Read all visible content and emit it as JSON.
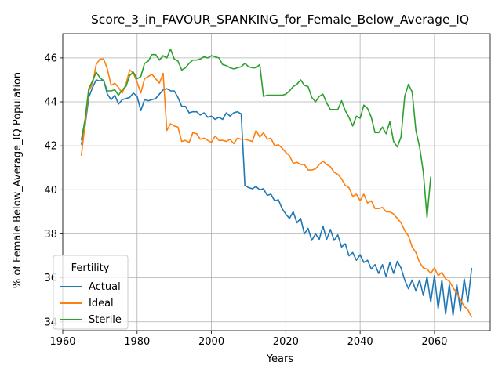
{
  "chart_data": {
    "type": "line",
    "title": "Score_3_in_FAVOUR_SPANKING_for_Female_Below_Average_IQ",
    "xlabel": "Years",
    "ylabel": "% of Female Below_Average_IQ Population",
    "xlim": [
      1960,
      2075
    ],
    "ylim": [
      33.6,
      47.1
    ],
    "xticks": [
      1960,
      1980,
      2000,
      2020,
      2040,
      2060
    ],
    "yticks": [
      34,
      36,
      38,
      40,
      42,
      44,
      46
    ],
    "grid": true,
    "legend": {
      "title": "Fertility",
      "placement": "lower-left"
    },
    "x": [
      1965,
      1966,
      1967,
      1968,
      1969,
      1970,
      1971,
      1972,
      1973,
      1974,
      1975,
      1976,
      1977,
      1978,
      1979,
      1980,
      1981,
      1982,
      1983,
      1984,
      1985,
      1986,
      1987,
      1988,
      1989,
      1990,
      1991,
      1992,
      1993,
      1994,
      1995,
      1996,
      1997,
      1998,
      1999,
      2000,
      2001,
      2002,
      2003,
      2004,
      2005,
      2006,
      2007,
      2008,
      2009,
      2010,
      2011,
      2012,
      2013,
      2014,
      2015,
      2016,
      2017,
      2018,
      2019,
      2020,
      2021,
      2022,
      2023,
      2024,
      2025,
      2026,
      2027,
      2028,
      2029,
      2030,
      2031,
      2032,
      2033,
      2034,
      2035,
      2036,
      2037,
      2038,
      2039,
      2040,
      2041,
      2042,
      2043,
      2044,
      2045,
      2046,
      2047,
      2048,
      2049,
      2050,
      2051,
      2052,
      2053,
      2054,
      2055,
      2056,
      2057,
      2058,
      2059,
      2060,
      2061,
      2062,
      2063,
      2064,
      2065,
      2066,
      2067,
      2068,
      2069,
      2070
    ],
    "series": [
      {
        "name": "Actual",
        "color": "#1f77b4",
        "values": [
          42.05,
          42.9,
          44.2,
          44.65,
          45.0,
          44.95,
          45.0,
          44.35,
          44.1,
          44.3,
          43.9,
          44.1,
          44.15,
          44.2,
          44.4,
          44.25,
          43.6,
          44.1,
          44.05,
          44.1,
          44.15,
          44.35,
          44.55,
          44.6,
          44.5,
          44.5,
          44.2,
          43.8,
          43.8,
          43.5,
          43.55,
          43.55,
          43.4,
          43.5,
          43.3,
          43.35,
          43.2,
          43.3,
          43.2,
          43.5,
          43.35,
          43.5,
          43.55,
          43.45,
          40.2,
          40.1,
          40.05,
          40.15,
          40.0,
          40.05,
          39.75,
          39.8,
          39.5,
          39.55,
          39.15,
          38.9,
          38.7,
          39.0,
          38.5,
          38.7,
          38.0,
          38.25,
          37.7,
          38.0,
          37.75,
          38.35,
          37.75,
          38.2,
          37.7,
          37.95,
          37.4,
          37.55,
          37.0,
          37.15,
          36.8,
          37.05,
          36.7,
          36.8,
          36.4,
          36.6,
          36.2,
          36.6,
          36.05,
          36.7,
          36.2,
          36.75,
          36.45,
          35.9,
          35.5,
          35.9,
          35.4,
          35.9,
          35.2,
          36.05,
          34.9,
          36.1,
          34.6,
          35.9,
          34.35,
          35.7,
          34.3,
          35.7,
          34.5,
          35.95,
          34.9,
          36.45
        ]
      },
      {
        "name": "Ideal",
        "color": "#ff7f0e",
        "values": [
          41.55,
          43.0,
          44.5,
          44.8,
          45.7,
          45.95,
          45.95,
          45.5,
          44.75,
          44.85,
          44.65,
          44.4,
          44.8,
          45.45,
          45.3,
          44.9,
          44.4,
          45.05,
          45.15,
          45.25,
          45.05,
          44.85,
          45.3,
          42.7,
          43.0,
          42.9,
          42.85,
          42.2,
          42.25,
          42.15,
          42.6,
          42.55,
          42.3,
          42.35,
          42.25,
          42.15,
          42.45,
          42.25,
          42.25,
          42.2,
          42.3,
          42.1,
          42.35,
          42.3,
          42.3,
          42.25,
          42.2,
          42.7,
          42.4,
          42.6,
          42.3,
          42.35,
          42.0,
          42.05,
          41.9,
          41.7,
          41.55,
          41.2,
          41.25,
          41.15,
          41.15,
          40.9,
          40.9,
          40.95,
          41.15,
          41.3,
          41.15,
          41.05,
          40.8,
          40.7,
          40.5,
          40.2,
          40.1,
          39.7,
          39.8,
          39.5,
          39.8,
          39.4,
          39.5,
          39.15,
          39.15,
          39.2,
          39.0,
          39.0,
          38.9,
          38.7,
          38.5,
          38.15,
          37.9,
          37.4,
          37.15,
          36.7,
          36.45,
          36.4,
          36.2,
          36.45,
          36.1,
          36.25,
          35.95,
          35.85,
          35.55,
          35.3,
          35.0,
          34.7,
          34.55,
          34.2
        ]
      },
      {
        "name": "Sterile",
        "color": "#2ca02c",
        "values": [
          42.25,
          43.2,
          44.6,
          44.95,
          45.35,
          45.1,
          44.95,
          44.5,
          44.5,
          44.55,
          44.3,
          44.55,
          44.7,
          45.2,
          45.35,
          45.05,
          45.15,
          45.75,
          45.85,
          46.15,
          46.15,
          45.9,
          46.1,
          46.0,
          46.4,
          45.95,
          45.85,
          45.45,
          45.55,
          45.75,
          45.9,
          45.9,
          45.95,
          46.05,
          46.0,
          46.1,
          46.05,
          46.0,
          45.7,
          45.65,
          45.55,
          45.5,
          45.55,
          45.6,
          45.75,
          45.6,
          45.55,
          45.55,
          45.7,
          44.25,
          44.3,
          44.3,
          44.3,
          44.3,
          44.3,
          44.35,
          44.5,
          44.7,
          44.8,
          45.0,
          44.75,
          44.7,
          44.2,
          44.0,
          44.25,
          44.35,
          43.95,
          43.65,
          43.65,
          43.65,
          44.05,
          43.6,
          43.3,
          42.9,
          43.35,
          43.25,
          43.85,
          43.7,
          43.3,
          42.6,
          42.6,
          42.85,
          42.55,
          43.1,
          42.2,
          41.95,
          42.4,
          44.25,
          44.8,
          44.45,
          42.7,
          41.95,
          40.8,
          38.75,
          40.6,
          null,
          null,
          null,
          null,
          null,
          null,
          null,
          null,
          null,
          null,
          null
        ]
      }
    ]
  }
}
